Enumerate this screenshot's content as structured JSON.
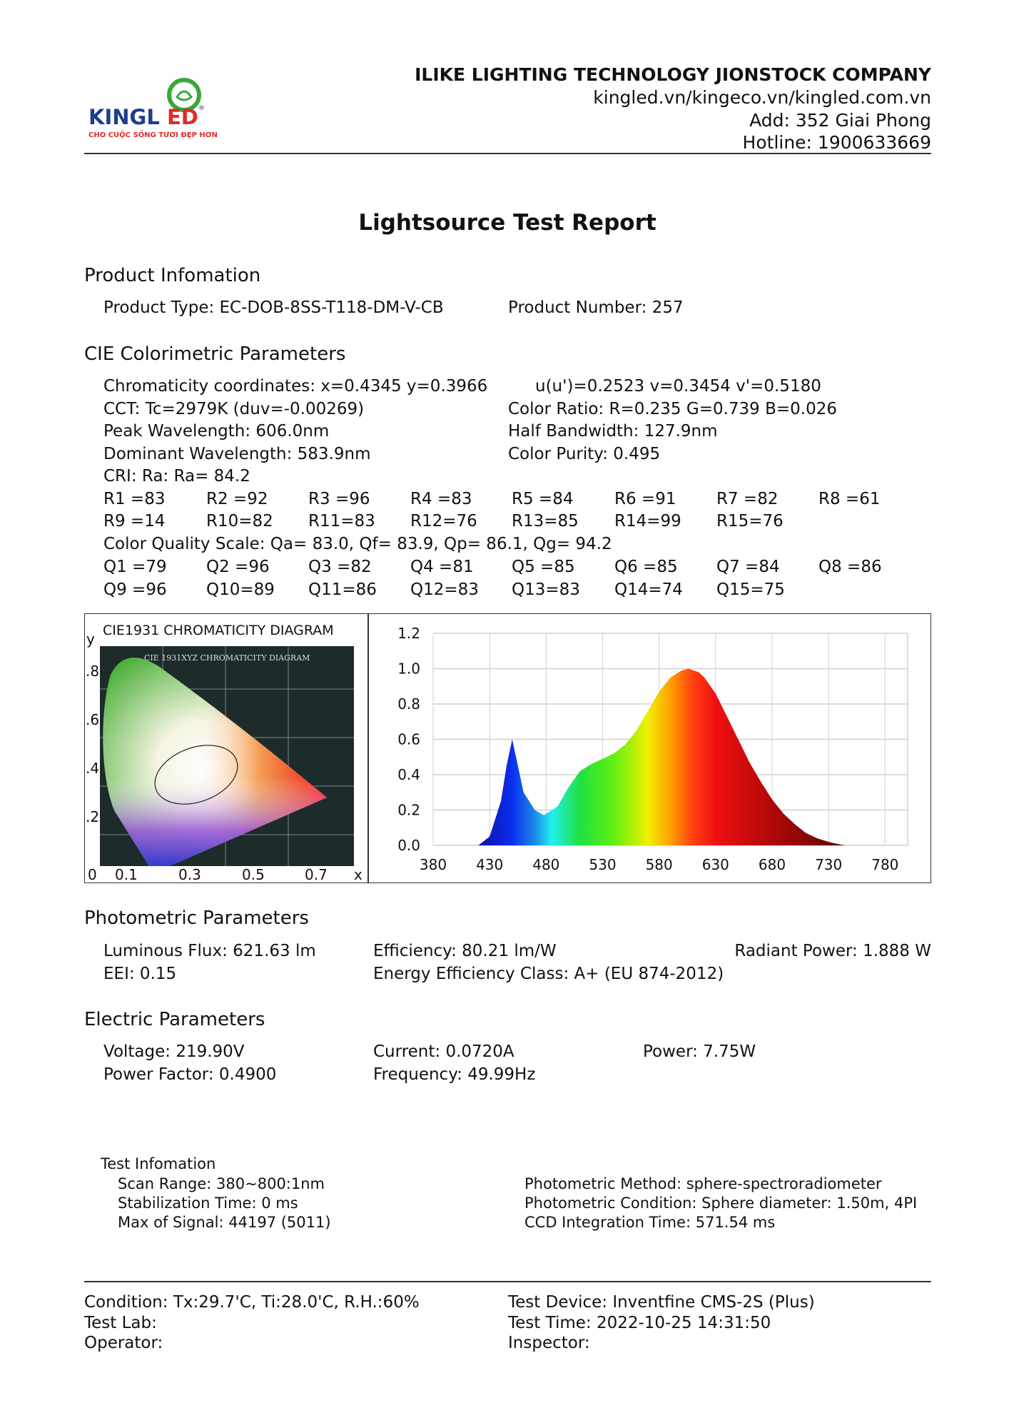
{
  "header": {
    "logo": {
      "wordmark": "KINGLED",
      "slogan": "CHO CUỘC SỐNG TƯƠI ĐẸP HƠN",
      "brand_blue": "#1f3d8f",
      "brand_green": "#3aa83a",
      "brand_red": "#e02a2a"
    },
    "company": "ILIKE LIGHTING TECHNOLOGY JIONSTOCK COMPANY",
    "website": "kingled.vn/kingeco.vn/kingled.com.vn",
    "address": "Add: 352 Giai Phong",
    "hotline": "Hotline: 1900633669"
  },
  "title": "Lightsource Test Report",
  "product": {
    "heading": "Product Infomation",
    "type": "Product Type: EC-DOB-8SS-T118-DM-V-CB",
    "number": "Product Number: 257"
  },
  "cie": {
    "heading": "CIE Colorimetric Parameters",
    "chromaticity": "Chromaticity coordinates: x=0.4345 y=0.3966",
    "uv": "u(u')=0.2523 v=0.3454 v'=0.5180",
    "cct": "CCT: Tc=2979K (duv=-0.00269)",
    "color_ratio": "Color Ratio: R=0.235  G=0.739  B=0.026",
    "peak": "Peak Wavelength: 606.0nm",
    "half_bandwidth": "Half Bandwidth: 127.9nm",
    "dominant": "Dominant Wavelength: 583.9nm",
    "purity": "Color Purity: 0.495",
    "cri": "CRI: Ra: Ra= 84.2",
    "r_row1": [
      "R1 =83",
      "R2 =92",
      "R3 =96",
      "R4 =83",
      "R5 =84",
      "R6 =91",
      "R7 =82",
      "R8 =61"
    ],
    "r_row2": [
      "R9 =14",
      "R10=82",
      "R11=83",
      "R12=76",
      "R13=85",
      "R14=99",
      "R15=76"
    ],
    "cqs": "Color Quality Scale: Qa= 83.0, Qf= 83.9, Qp= 86.1, Qg= 94.2",
    "q_row1": [
      "Q1 =79",
      "Q2 =96",
      "Q3 =82",
      "Q4 =81",
      "Q5 =85",
      "Q6 =85",
      "Q7 =84",
      "Q8 =86"
    ],
    "q_row2": [
      "Q9 =96",
      "Q10=89",
      "Q11=86",
      "Q12=83",
      "Q13=83",
      "Q14=74",
      "Q15=75"
    ]
  },
  "cie_diagram": {
    "title": "CIE1931 CHROMATICITY DIAGRAM",
    "inner_title": "CIE 1931XYZ CHROMATICITY DIAGRAM",
    "y_label": "y",
    "x_label": "x",
    "y_ticks": [
      ".8",
      ".6",
      ".4",
      ".2"
    ],
    "x_ticks": [
      "0",
      "0.1",
      "0.3",
      "0.5",
      "0.7"
    ]
  },
  "chart_data": {
    "type": "area",
    "title": "",
    "xlabel": "",
    "ylabel": "",
    "xlim": [
      380,
      800
    ],
    "ylim": [
      0,
      1.2
    ],
    "grid": true,
    "x_ticks": [
      "380",
      "430",
      "480",
      "530",
      "580",
      "630",
      "680",
      "730",
      "780"
    ],
    "y_ticks": [
      "0.0",
      "0.2",
      "0.4",
      "0.6",
      "0.8",
      "1.0",
      "1.2"
    ],
    "x": [
      420,
      430,
      440,
      445,
      450,
      455,
      460,
      470,
      478,
      490,
      500,
      510,
      520,
      530,
      540,
      550,
      560,
      570,
      580,
      590,
      600,
      606,
      615,
      620,
      630,
      640,
      650,
      660,
      670,
      680,
      690,
      700,
      710,
      720,
      730,
      740,
      745
    ],
    "y": [
      0.0,
      0.05,
      0.25,
      0.45,
      0.6,
      0.45,
      0.3,
      0.2,
      0.17,
      0.22,
      0.33,
      0.42,
      0.46,
      0.49,
      0.52,
      0.57,
      0.65,
      0.76,
      0.87,
      0.95,
      0.99,
      1.0,
      0.98,
      0.95,
      0.86,
      0.73,
      0.6,
      0.47,
      0.36,
      0.26,
      0.18,
      0.12,
      0.07,
      0.04,
      0.02,
      0.005,
      0.0
    ],
    "fill": "spectral colors by wavelength"
  },
  "photometric": {
    "heading": "Photometric Parameters",
    "flux": "Luminous Flux: 621.63 lm",
    "efficiency": "Efficiency: 80.21 lm/W",
    "radiant": "Radiant Power: 1.888 W",
    "eei": "EEI:  0.15",
    "class": "Energy Efficiency Class: A+ (EU 874-2012)"
  },
  "electric": {
    "heading": "Electric Parameters",
    "voltage": "Voltage: 219.90V",
    "current": "Current: 0.0720A",
    "power": "Power: 7.75W",
    "pf": "Power Factor: 0.4900",
    "frequency": "Frequency: 49.99Hz"
  },
  "test_info": {
    "heading": "Test Infomation",
    "scan_range": "Scan Range: 380~800:1nm",
    "stabilization": "Stabilization Time: 0 ms",
    "max_signal": "Max of Signal: 44197 (5011)",
    "method": "Photometric Method: sphere-spectroradiometer",
    "condition": "Photometric Condition: Sphere diameter: 1.50m, 4PI",
    "ccd": "CCD Integration Time: 571.54 ms"
  },
  "footer": {
    "condition": "Condition: Tx:29.7'C, Ti:28.0'C, R.H.:60%",
    "lab": "Test Lab:",
    "operator": "Operator:",
    "device": "Test Device: Inventfine CMS-2S (Plus)",
    "time": "Test Time: 2022-10-25 14:31:50",
    "inspector": "Inspector:"
  }
}
